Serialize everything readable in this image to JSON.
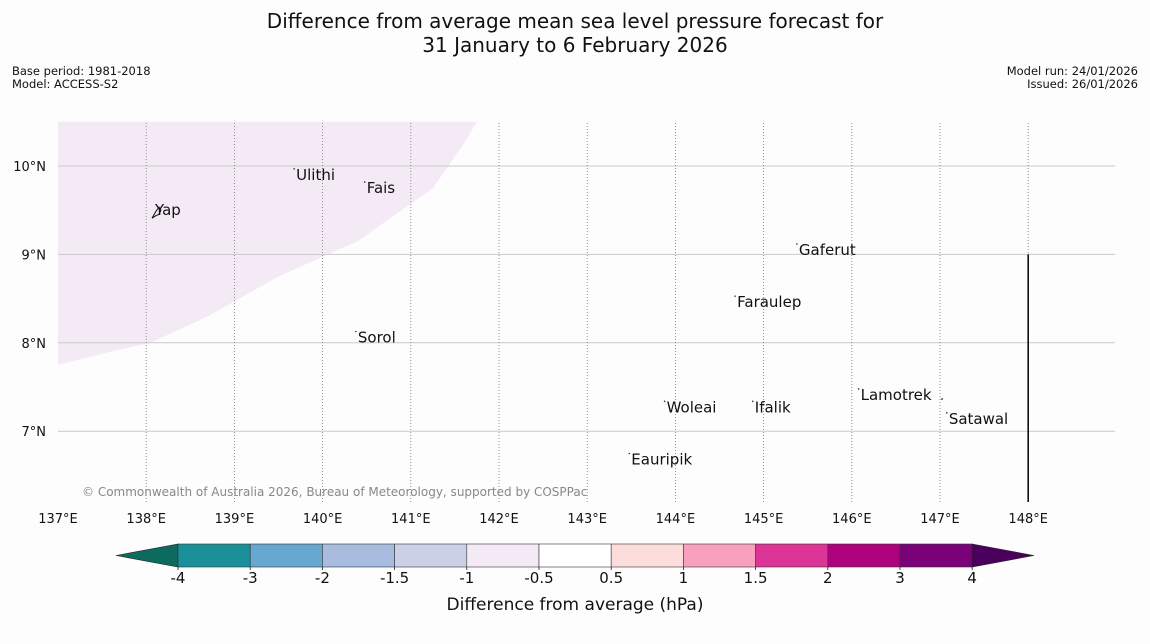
{
  "title": {
    "line1": "Difference from average mean sea level pressure forecast for",
    "line2": "31 January to 6 February 2026"
  },
  "meta_left": {
    "base_period": "Base period: 1981-2018",
    "model": "Model: ACCESS-S2"
  },
  "meta_right": {
    "model_run": "Model run: 24/01/2026",
    "issued": "Issued: 26/01/2026"
  },
  "map": {
    "lon_ticks": [
      {
        "value": 137,
        "label": "137°E"
      },
      {
        "value": 138,
        "label": "138°E"
      },
      {
        "value": 139,
        "label": "139°E"
      },
      {
        "value": 140,
        "label": "140°E"
      },
      {
        "value": 141,
        "label": "141°E"
      },
      {
        "value": 142,
        "label": "142°E"
      },
      {
        "value": 143,
        "label": "143°E"
      },
      {
        "value": 144,
        "label": "144°E"
      },
      {
        "value": 145,
        "label": "145°E"
      },
      {
        "value": 146,
        "label": "146°E"
      },
      {
        "value": 147,
        "label": "147°E"
      },
      {
        "value": 148,
        "label": "148°E"
      }
    ],
    "lat_ticks": [
      {
        "value": 10,
        "label": "10°N"
      },
      {
        "value": 9,
        "label": "9°N"
      },
      {
        "value": 8,
        "label": "8°N"
      },
      {
        "value": 7,
        "label": "7°N"
      }
    ],
    "lon_range": [
      137,
      149
    ],
    "lat_range": [
      6.25,
      10.5
    ],
    "anomaly_region": {
      "fill": "#f3eaf5",
      "boundary": [
        [
          137,
          7.75
        ],
        [
          137.6,
          7.9
        ],
        [
          138.05,
          8.0
        ],
        [
          138.7,
          8.3
        ],
        [
          139.5,
          8.75
        ],
        [
          140.4,
          9.15
        ],
        [
          141.25,
          9.75
        ],
        [
          141.6,
          10.25
        ],
        [
          141.75,
          10.5
        ]
      ]
    },
    "islands": [
      {
        "name": "Yap",
        "lon": 138.1,
        "lat": 9.5,
        "label": "Yap"
      },
      {
        "name": "Ulithi",
        "lon": 139.7,
        "lat": 9.9,
        "label": "Ulithi"
      },
      {
        "name": "Fais",
        "lon": 140.5,
        "lat": 9.75,
        "label": "Fais"
      },
      {
        "name": "Gaferut",
        "lon": 145.4,
        "lat": 9.05,
        "label": "Gaferut"
      },
      {
        "name": "Faraulep",
        "lon": 144.7,
        "lat": 8.46,
        "label": "Faraulep"
      },
      {
        "name": "Sorol",
        "lon": 140.4,
        "lat": 8.06,
        "label": "Sorol"
      },
      {
        "name": "Lamotrek",
        "lon": 146.1,
        "lat": 7.41,
        "label": "Lamotrek"
      },
      {
        "name": "Woleai",
        "lon": 143.9,
        "lat": 7.27,
        "label": "Woleai"
      },
      {
        "name": "Ifalik",
        "lon": 144.9,
        "lat": 7.27,
        "label": "Ifalik"
      },
      {
        "name": "Satawal",
        "lon": 147.1,
        "lat": 7.14,
        "label": "Satawal"
      },
      {
        "name": "Eauripik",
        "lon": 143.5,
        "lat": 6.68,
        "label": "Eauripik"
      }
    ],
    "border_line": {
      "lon": 148,
      "lat_from": 6.25,
      "lat_to": 9.0
    },
    "copyright": "© Commonwealth of Australia 2026, Bureau of Meteorology, supported by COSPPac"
  },
  "colorbar": {
    "label": "Difference from average (hPa)",
    "tick_labels": [
      "-4",
      "-3",
      "-2",
      "-1.5",
      "-1",
      "-0.5",
      "0.5",
      "1",
      "1.5",
      "2",
      "3",
      "4"
    ],
    "low_extend_color": "#0c6b5e",
    "high_extend_color": "#4a005c",
    "bin_colors": [
      "#1a9199",
      "#66a8d0",
      "#a8bcdf",
      "#ccd0e7",
      "#f3eaf5",
      "#ffffff",
      "#fddcdc",
      "#f8a0bd",
      "#dd3497",
      "#ae017e",
      "#7a0177"
    ]
  }
}
